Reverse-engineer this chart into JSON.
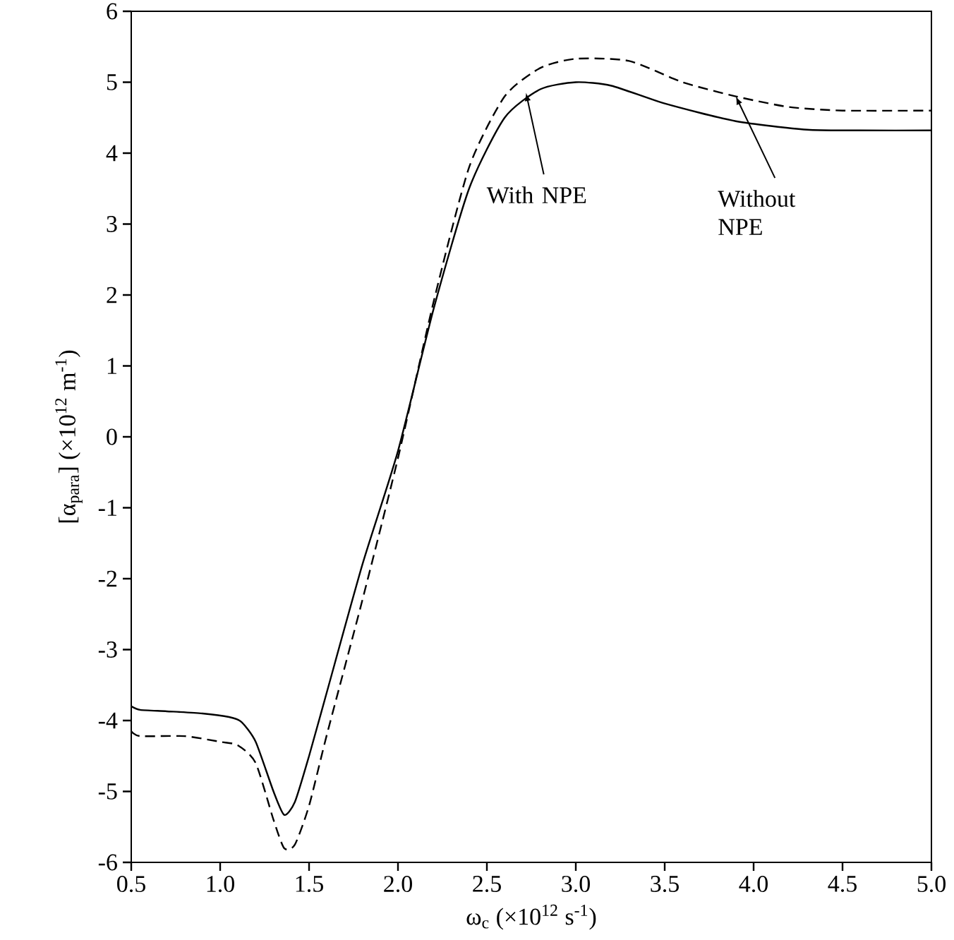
{
  "chart_data": {
    "type": "line",
    "xlabel": "ω$_{c}$ (×10$^{12}$ s$^{-1}$)",
    "ylabel": "[α$_{para}$] (×10$^{12}$ m$^{-1}$)",
    "xlim": [
      0.5,
      5.0
    ],
    "ylim": [
      -6,
      6
    ],
    "xticks": [
      {
        "value": 0.5,
        "label": "0.5"
      },
      {
        "value": 1.0,
        "label": "1.0"
      },
      {
        "value": 1.5,
        "label": "1.5"
      },
      {
        "value": 2.0,
        "label": "2.0"
      },
      {
        "value": 2.5,
        "label": "2.5"
      },
      {
        "value": 3.0,
        "label": "3.0"
      },
      {
        "value": 3.5,
        "label": "3.5"
      },
      {
        "value": 4.0,
        "label": "4.0"
      },
      {
        "value": 4.5,
        "label": "4.5"
      },
      {
        "value": 5.0,
        "label": "5.0"
      }
    ],
    "yticks": [
      -6,
      -5,
      -4,
      -3,
      -2,
      -1,
      0,
      1,
      2,
      3,
      4,
      5,
      6
    ],
    "grid": false,
    "marker": "none",
    "series": [
      {
        "color": "#000000",
        "line_style": "solid",
        "x": [
          0.5,
          0.55,
          0.7,
          0.9,
          1.05,
          1.12,
          1.2,
          1.3,
          1.36,
          1.42,
          1.5,
          1.6,
          1.8,
          2.0,
          2.2,
          2.4,
          2.6,
          2.8,
          3.0,
          3.2,
          3.5,
          3.9,
          4.3,
          4.6,
          5.0
        ],
        "values": [
          -3.8,
          -3.85,
          -3.87,
          -3.9,
          -3.95,
          -4.02,
          -4.3,
          -5.0,
          -5.33,
          -5.15,
          -4.5,
          -3.6,
          -1.8,
          -0.2,
          1.8,
          3.5,
          4.5,
          4.9,
          5.0,
          4.95,
          4.7,
          4.45,
          4.33,
          4.32,
          4.32
        ]
      },
      {
        "color": "#000000",
        "line_style": "dashed",
        "x": [
          0.5,
          0.55,
          0.8,
          1.0,
          1.1,
          1.2,
          1.3,
          1.36,
          1.42,
          1.5,
          1.6,
          1.8,
          2.0,
          2.2,
          2.4,
          2.6,
          2.8,
          3.0,
          3.3,
          3.6,
          3.9,
          4.2,
          4.5,
          5.0
        ],
        "values": [
          -4.15,
          -4.22,
          -4.22,
          -4.3,
          -4.35,
          -4.6,
          -5.4,
          -5.8,
          -5.75,
          -5.2,
          -4.2,
          -2.3,
          -0.3,
          1.9,
          3.8,
          4.8,
          5.2,
          5.33,
          5.3,
          5.0,
          4.8,
          4.65,
          4.6,
          4.6
        ]
      }
    ],
    "annotations": [
      {
        "text": "With NPE",
        "x": 2.72,
        "y": 4.85
      },
      {
        "text": "Without NPE",
        "x": 3.9,
        "y": 4.8
      }
    ]
  }
}
